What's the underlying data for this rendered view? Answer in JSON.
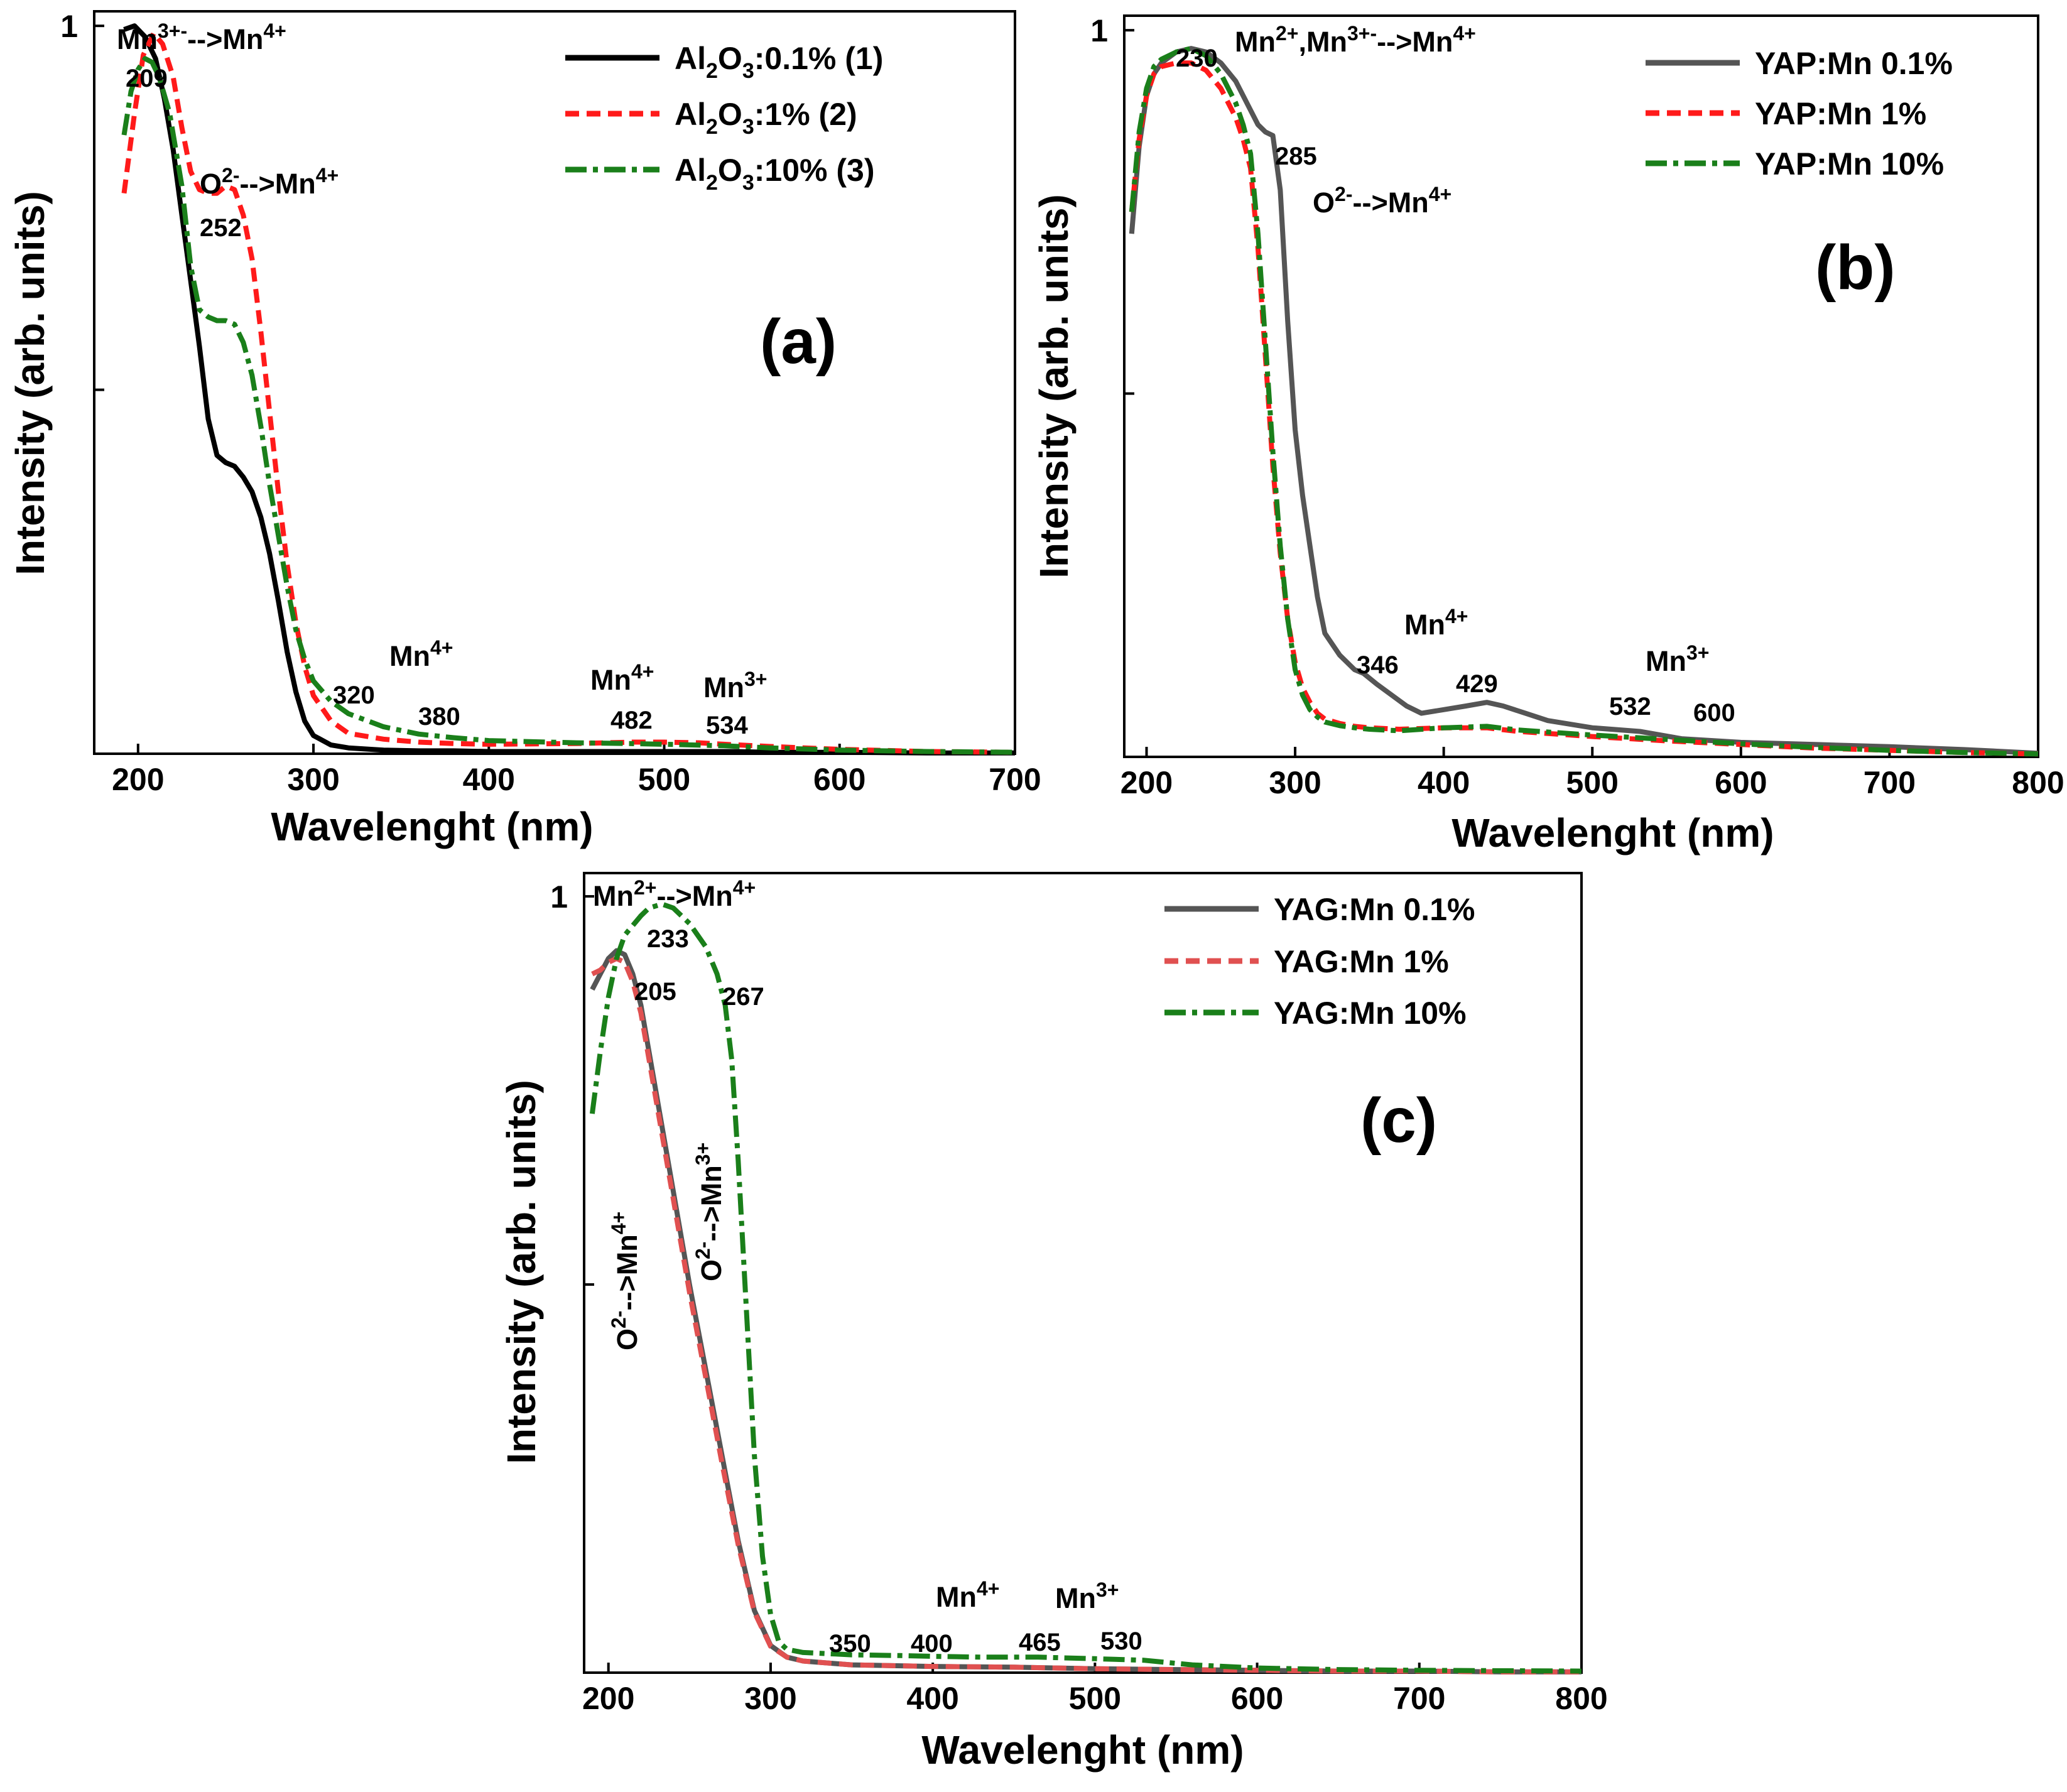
{
  "chart_data": [
    {
      "panel": "(a)",
      "type": "line",
      "xlabel": "Wavelenght (nm)",
      "ylabel": "Intensity (arb. units)",
      "xlim": [
        175,
        700
      ],
      "ylim": [
        0,
        1.02
      ],
      "xticks": [
        200,
        300,
        400,
        500,
        600,
        700
      ],
      "yticks": [
        0.5,
        1.0
      ],
      "ytick_labels": [
        "",
        "1"
      ],
      "legend_position": "top-right",
      "series": [
        {
          "name": "Al2O3:0.1% (1)",
          "legend_main": "Al",
          "legend_sub1": "2",
          "legend_mid": "O",
          "legend_sub2": "3",
          "legend_tail": ":0.1% (1)",
          "color": "#000000",
          "dash": "",
          "x": [
            192,
            198,
            204,
            210,
            215,
            220,
            225,
            230,
            235,
            240,
            245,
            250,
            255,
            260,
            265,
            270,
            275,
            280,
            285,
            290,
            295,
            300,
            310,
            320,
            340,
            360,
            380,
            400,
            450,
            480,
            500,
            520,
            540,
            560,
            600,
            650,
            700
          ],
          "y": [
            0.995,
            1.0,
            0.985,
            0.955,
            0.9,
            0.83,
            0.74,
            0.65,
            0.56,
            0.46,
            0.41,
            0.4,
            0.395,
            0.38,
            0.36,
            0.325,
            0.275,
            0.21,
            0.14,
            0.085,
            0.045,
            0.025,
            0.012,
            0.008,
            0.005,
            0.004,
            0.004,
            0.003,
            0.003,
            0.003,
            0.003,
            0.003,
            0.003,
            0.002,
            0.002,
            0.001,
            0.001
          ]
        },
        {
          "name": "Al2O3:1% (2)",
          "legend_main": "Al",
          "legend_sub1": "2",
          "legend_mid": "O",
          "legend_sub2": "3",
          "legend_tail": ":1% (2)",
          "color": "#ff1a1a",
          "dash": "22,12",
          "x": [
            192,
            198,
            203,
            209,
            214,
            220,
            225,
            230,
            235,
            240,
            245,
            250,
            255,
            260,
            265,
            270,
            275,
            280,
            285,
            290,
            295,
            300,
            310,
            320,
            340,
            360,
            380,
            400,
            450,
            482,
            500,
            520,
            534,
            560,
            600,
            650,
            700
          ],
          "y": [
            0.77,
            0.88,
            0.96,
            0.99,
            0.975,
            0.93,
            0.86,
            0.8,
            0.775,
            0.77,
            0.77,
            0.78,
            0.775,
            0.74,
            0.68,
            0.58,
            0.47,
            0.36,
            0.26,
            0.18,
            0.12,
            0.08,
            0.045,
            0.028,
            0.02,
            0.016,
            0.014,
            0.013,
            0.014,
            0.016,
            0.016,
            0.015,
            0.013,
            0.01,
            0.006,
            0.003,
            0.002
          ]
        },
        {
          "name": "Al2O3:10% (3)",
          "legend_main": "Al",
          "legend_sub1": "2",
          "legend_mid": "O",
          "legend_sub2": "3",
          "legend_tail": ":10% (3)",
          "color": "#1a7f1a",
          "dash": "34,10,8,10",
          "x": [
            192,
            196,
            200,
            204,
            208,
            212,
            218,
            225,
            230,
            235,
            240,
            245,
            250,
            255,
            260,
            265,
            270,
            275,
            280,
            285,
            290,
            295,
            300,
            310,
            320,
            340,
            360,
            380,
            400,
            450,
            480,
            500,
            534,
            560,
            600,
            650,
            700
          ],
          "y": [
            0.85,
            0.91,
            0.94,
            0.955,
            0.95,
            0.93,
            0.88,
            0.78,
            0.67,
            0.61,
            0.6,
            0.595,
            0.595,
            0.59,
            0.565,
            0.52,
            0.45,
            0.37,
            0.3,
            0.23,
            0.17,
            0.13,
            0.1,
            0.072,
            0.055,
            0.037,
            0.027,
            0.022,
            0.018,
            0.015,
            0.014,
            0.013,
            0.011,
            0.008,
            0.005,
            0.003,
            0.002
          ]
        }
      ],
      "annotations": {
        "a1_base": "Mn",
        "a1_sup": "3+-",
        "a1_mid": "-->Mn",
        "a1_sup2": "4+",
        "a2": "209",
        "a3_base": "O",
        "a3_sup": "2-",
        "a3_mid": "-->Mn",
        "a3_sup2": "4+",
        "a4": "252",
        "a5_base": "Mn",
        "a5_sup": "4+",
        "a6": "320",
        "a7": "380",
        "a8_base": "Mn",
        "a8_sup": "4+",
        "a9": "482",
        "a10_base": "Mn",
        "a10_sup": "3+",
        "a11": "534"
      }
    },
    {
      "panel": "(b)",
      "type": "line",
      "xlabel": "Wavelenght (nm)",
      "ylabel": "Intensity (arb. units)",
      "xlim": [
        185,
        800
      ],
      "ylim": [
        0,
        1.02
      ],
      "xticks": [
        200,
        300,
        400,
        500,
        600,
        700,
        800
      ],
      "yticks": [
        0.5,
        1.0
      ],
      "ytick_labels": [
        "",
        "1"
      ],
      "legend_position": "top-right",
      "series": [
        {
          "name": "YAP:Mn 0.1%",
          "color": "#555555",
          "dash": "",
          "x": [
            190,
            195,
            200,
            205,
            210,
            220,
            230,
            240,
            250,
            260,
            270,
            275,
            280,
            285,
            290,
            295,
            300,
            305,
            310,
            315,
            320,
            330,
            340,
            346,
            355,
            365,
            375,
            385,
            400,
            415,
            429,
            440,
            455,
            470,
            500,
            532,
            560,
            600,
            650,
            700,
            750,
            800
          ],
          "y": [
            0.72,
            0.84,
            0.91,
            0.94,
            0.955,
            0.97,
            0.975,
            0.97,
            0.955,
            0.93,
            0.89,
            0.87,
            0.86,
            0.855,
            0.78,
            0.6,
            0.45,
            0.36,
            0.29,
            0.22,
            0.17,
            0.14,
            0.12,
            0.115,
            0.1,
            0.085,
            0.07,
            0.06,
            0.065,
            0.07,
            0.075,
            0.07,
            0.06,
            0.05,
            0.04,
            0.035,
            0.025,
            0.02,
            0.017,
            0.014,
            0.01,
            0.005
          ]
        },
        {
          "name": "YAP:Mn 1%",
          "color": "#ff1a1a",
          "dash": "22,12",
          "x": [
            190,
            195,
            200,
            205,
            210,
            220,
            230,
            240,
            250,
            260,
            265,
            270,
            275,
            280,
            285,
            290,
            295,
            300,
            305,
            310,
            315,
            320,
            330,
            340,
            350,
            370,
            400,
            429,
            450,
            500,
            550,
            600,
            650,
            700,
            750,
            800
          ],
          "y": [
            0.75,
            0.85,
            0.91,
            0.94,
            0.95,
            0.955,
            0.955,
            0.945,
            0.92,
            0.88,
            0.85,
            0.81,
            0.7,
            0.55,
            0.4,
            0.28,
            0.19,
            0.13,
            0.095,
            0.075,
            0.06,
            0.052,
            0.046,
            0.042,
            0.04,
            0.038,
            0.04,
            0.04,
            0.035,
            0.028,
            0.022,
            0.017,
            0.012,
            0.009,
            0.006,
            0.004
          ]
        },
        {
          "name": "YAP:Mn 10%",
          "color": "#1a7f1a",
          "dash": "34,10,8,10",
          "x": [
            190,
            195,
            200,
            205,
            210,
            220,
            230,
            240,
            250,
            260,
            265,
            270,
            275,
            280,
            285,
            290,
            295,
            300,
            305,
            310,
            315,
            320,
            330,
            340,
            350,
            370,
            400,
            429,
            450,
            500,
            550,
            600,
            650,
            700,
            750,
            800
          ],
          "y": [
            0.75,
            0.86,
            0.92,
            0.95,
            0.96,
            0.97,
            0.975,
            0.965,
            0.94,
            0.9,
            0.87,
            0.83,
            0.72,
            0.57,
            0.42,
            0.29,
            0.19,
            0.12,
            0.085,
            0.065,
            0.055,
            0.048,
            0.043,
            0.04,
            0.038,
            0.036,
            0.04,
            0.042,
            0.037,
            0.03,
            0.024,
            0.018,
            0.013,
            0.009,
            0.006,
            0.004
          ]
        }
      ],
      "annotations": {
        "b1": "230",
        "b2_base": "Mn",
        "b2_sup": "2+",
        "b2_mid": ",Mn",
        "b2_sup2": "3+-",
        "b2_mid2": "-->Mn",
        "b2_sup3": "4+",
        "b3": "285",
        "b4_base": "O",
        "b4_sup": "2-",
        "b4_mid": "-->Mn",
        "b4_sup2": "4+",
        "b5_base": "Mn",
        "b5_sup": "4+",
        "b6": "346",
        "b7": "429",
        "b8_base": "Mn",
        "b8_sup": "3+",
        "b9": "532",
        "b10": "600"
      }
    },
    {
      "panel": "(c)",
      "type": "line",
      "xlabel": "Wavelenght (nm)",
      "ylabel": "Intensity (arb. units)",
      "xlim": [
        185,
        800
      ],
      "ylim": [
        0,
        1.03
      ],
      "xticks": [
        200,
        300,
        400,
        500,
        600,
        700,
        800
      ],
      "yticks": [
        0.5,
        1.0
      ],
      "ytick_labels": [
        "",
        "1"
      ],
      "legend_position": "top-right",
      "series": [
        {
          "name": "YAG:Mn 0.1%",
          "color": "#555555",
          "dash": "",
          "x": [
            190,
            195,
            200,
            205,
            210,
            215,
            220,
            225,
            230,
            240,
            250,
            260,
            270,
            280,
            290,
            300,
            310,
            320,
            350,
            400,
            450,
            500,
            550,
            600,
            650,
            700,
            750,
            800
          ],
          "y": [
            0.88,
            0.9,
            0.92,
            0.93,
            0.925,
            0.9,
            0.86,
            0.8,
            0.74,
            0.62,
            0.5,
            0.39,
            0.28,
            0.17,
            0.08,
            0.035,
            0.02,
            0.015,
            0.01,
            0.008,
            0.007,
            0.005,
            0.004,
            0.003,
            0.002,
            0.002,
            0.001,
            0.001
          ]
        },
        {
          "name": "YAG:Mn 1%",
          "color": "#e05050",
          "dash": "22,12",
          "x": [
            190,
            195,
            200,
            205,
            210,
            215,
            220,
            225,
            230,
            240,
            250,
            260,
            270,
            280,
            290,
            300,
            310,
            320,
            350,
            400,
            450,
            500,
            550,
            600,
            650,
            700,
            750,
            800
          ],
          "y": [
            0.9,
            0.905,
            0.915,
            0.92,
            0.915,
            0.89,
            0.85,
            0.79,
            0.73,
            0.61,
            0.49,
            0.38,
            0.27,
            0.165,
            0.078,
            0.034,
            0.02,
            0.015,
            0.01,
            0.008,
            0.007,
            0.005,
            0.004,
            0.003,
            0.002,
            0.002,
            0.001,
            0.001
          ]
        },
        {
          "name": "YAG:Mn 10%",
          "color": "#1a7f1a",
          "dash": "34,10,8,10",
          "x": [
            190,
            195,
            200,
            205,
            210,
            220,
            225,
            233,
            240,
            250,
            260,
            267,
            272,
            276,
            280,
            285,
            290,
            295,
            300,
            305,
            310,
            320,
            340,
            350,
            380,
            400,
            430,
            465,
            500,
            530,
            560,
            600,
            650,
            700,
            800
          ],
          "y": [
            0.72,
            0.8,
            0.87,
            0.92,
            0.95,
            0.975,
            0.985,
            0.99,
            0.985,
            0.965,
            0.935,
            0.9,
            0.86,
            0.79,
            0.66,
            0.47,
            0.28,
            0.15,
            0.075,
            0.04,
            0.03,
            0.026,
            0.024,
            0.023,
            0.022,
            0.021,
            0.02,
            0.02,
            0.018,
            0.016,
            0.01,
            0.006,
            0.004,
            0.003,
            0.002
          ]
        }
      ],
      "annotations": {
        "c1_base": "Mn",
        "c1_sup": "2+",
        "c1_mid": "-->Mn",
        "c1_sup2": "4+",
        "c2": "233",
        "c3": "205",
        "c4": "267",
        "c5_base": "O",
        "c5_sup": "2-",
        "c5_mid": "-->Mn",
        "c5_sup2": "4+",
        "c6_base": "O",
        "c6_sup": "2-",
        "c6_mid": "-->Mn",
        "c6_sup2": "3+",
        "c7": "350",
        "c8": "400",
        "c9_base": "Mn",
        "c9_sup": "4+",
        "c10": "465",
        "c11_base": "Mn",
        "c11_sup": "3+",
        "c12": "530"
      }
    }
  ]
}
